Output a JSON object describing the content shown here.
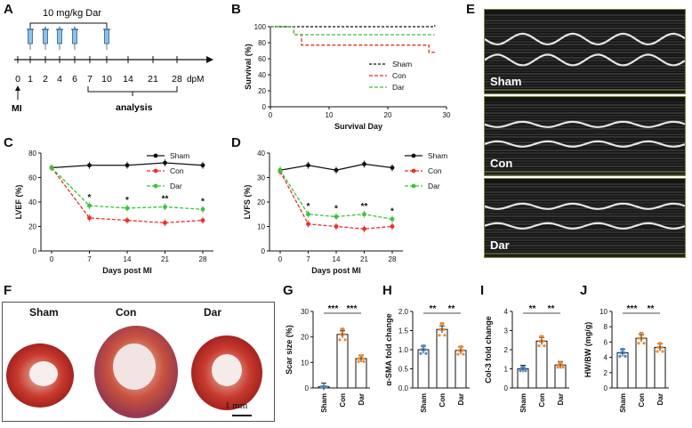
{
  "panels": {
    "A": "A",
    "B": "B",
    "C": "C",
    "D": "D",
    "E": "E",
    "F": "F",
    "G": "G",
    "H": "H",
    "I": "I",
    "J": "J"
  },
  "timeline": {
    "dose_label": "10 mg/kg Dar",
    "ticks": [
      "0",
      "1",
      "2",
      "4",
      "6",
      "7",
      "10",
      "14",
      "21",
      "28"
    ],
    "unit": "dpM",
    "event": "MI",
    "phase": "analysis"
  },
  "chart_data": [
    {
      "id": "B",
      "type": "line",
      "title": "",
      "xlabel": "Survival Day",
      "ylabel": "Survival (%)",
      "xlim": [
        0,
        30
      ],
      "ylim": [
        0,
        100
      ],
      "xticks": [
        0,
        10,
        20,
        30
      ],
      "yticks": [
        0,
        20,
        40,
        60,
        80,
        100
      ],
      "series": [
        {
          "name": "Sham",
          "color": "#111111",
          "points": [
            [
              0,
              100
            ],
            [
              28,
              100
            ],
            [
              28,
              102
            ]
          ]
        },
        {
          "name": "Con",
          "color": "#e8322a",
          "points": [
            [
              0,
              100
            ],
            [
              4,
              100
            ],
            [
              4,
              90
            ],
            [
              5.3,
              90
            ],
            [
              5.3,
              77
            ],
            [
              27,
              77
            ],
            [
              27,
              68
            ],
            [
              28,
              68
            ]
          ]
        },
        {
          "name": "Dar",
          "color": "#3cc23c",
          "points": [
            [
              0,
              100
            ],
            [
              4,
              100
            ],
            [
              4,
              90
            ],
            [
              28,
              90
            ]
          ]
        }
      ]
    },
    {
      "id": "C",
      "type": "line",
      "title": "",
      "xlabel": "Days post MI",
      "ylabel": "LVEF (%)",
      "ylim": [
        0,
        80
      ],
      "yticks": [
        0,
        20,
        40,
        60,
        80
      ],
      "categories": [
        "0",
        "7",
        "14",
        "21",
        "28"
      ],
      "series": [
        {
          "name": "Sham",
          "color": "#111111",
          "values": [
            68,
            70,
            70,
            72,
            70
          ]
        },
        {
          "name": "Con",
          "color": "#e8322a",
          "values": [
            68,
            27,
            25,
            23,
            25
          ]
        },
        {
          "name": "Dar",
          "color": "#3cc23c",
          "values": [
            68,
            37,
            35,
            36,
            34
          ]
        }
      ],
      "annotations": [
        "",
        "*",
        "*",
        "**",
        "*"
      ]
    },
    {
      "id": "D",
      "type": "line",
      "title": "",
      "xlabel": "Days post MI",
      "ylabel": "LVFS (%)",
      "ylim": [
        0,
        40
      ],
      "yticks": [
        0,
        10,
        20,
        30,
        40
      ],
      "categories": [
        "0",
        "7",
        "14",
        "21",
        "28"
      ],
      "series": [
        {
          "name": "Sham",
          "color": "#111111",
          "values": [
            33,
            35,
            33,
            35.5,
            34
          ]
        },
        {
          "name": "Con",
          "color": "#e8322a",
          "values": [
            32.5,
            11,
            10,
            9,
            10
          ]
        },
        {
          "name": "Dar",
          "color": "#3cc23c",
          "values": [
            33,
            15,
            14,
            15,
            13
          ]
        }
      ],
      "annotations": [
        "",
        "*",
        "*",
        "**",
        "*"
      ]
    },
    {
      "id": "G",
      "type": "bar",
      "title": "",
      "ylabel": "Scar size (%)",
      "ylim": [
        0,
        30
      ],
      "yticks": [
        0,
        10,
        20,
        30
      ],
      "categories": [
        "Sham",
        "Con",
        "Dar"
      ],
      "values": [
        0.5,
        21,
        11.5
      ],
      "sig": [
        "***",
        "***"
      ],
      "dot_color": "#f08a2c"
    },
    {
      "id": "H",
      "type": "bar",
      "title": "",
      "ylabel": "α-SMA fold change",
      "ylim": [
        0,
        2.0
      ],
      "yticks": [
        0.0,
        0.5,
        1.0,
        1.5,
        2.0
      ],
      "categories": [
        "Sham",
        "Con",
        "Dar"
      ],
      "values": [
        1.0,
        1.53,
        0.98
      ],
      "sig": [
        "**",
        "**"
      ],
      "dot_color": "#f08a2c"
    },
    {
      "id": "I",
      "type": "bar",
      "title": "",
      "ylabel": "Col-3 fold change",
      "ylim": [
        0,
        4
      ],
      "yticks": [
        0,
        1,
        2,
        3,
        4
      ],
      "categories": [
        "Sham",
        "Con",
        "Dar"
      ],
      "values": [
        1.0,
        2.45,
        1.2
      ],
      "sig": [
        "**",
        "**"
      ],
      "dot_color": "#f08a2c"
    },
    {
      "id": "J",
      "type": "bar",
      "title": "",
      "ylabel": "HW/BW (mg/g)",
      "ylim": [
        0,
        10
      ],
      "yticks": [
        0,
        2,
        4,
        6,
        8,
        10
      ],
      "categories": [
        "Sham",
        "Con",
        "Dar"
      ],
      "values": [
        4.6,
        6.5,
        5.3
      ],
      "sig": [
        "***",
        "**"
      ],
      "dot_color": "#f08a2c"
    }
  ],
  "echo": [
    {
      "label": "Sham"
    },
    {
      "label": "Con"
    },
    {
      "label": "Dar"
    }
  ],
  "histology": {
    "titles": [
      "Sham",
      "Con",
      "Dar"
    ],
    "scale_bar": "1 mm"
  }
}
